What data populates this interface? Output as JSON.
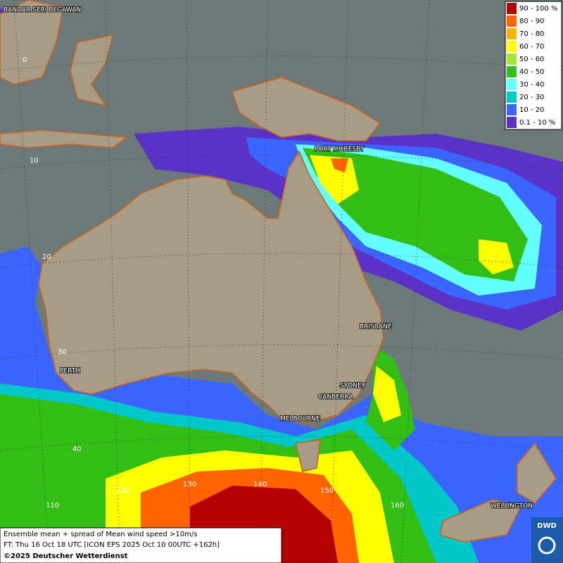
{
  "map": {
    "cities": [
      "BANDAR SERI BEGAWAN",
      "PORT MORESBY",
      "BRISBANE",
      "PERTH",
      "SYDNEY",
      "CANBERRA",
      "MELBOURNE",
      "WELLINGTON"
    ],
    "latitude_labels": [
      "0",
      "10",
      "20",
      "30",
      "40"
    ],
    "longitude_labels": [
      "110",
      "120",
      "130",
      "140",
      "150",
      "160"
    ],
    "legend": [
      {
        "label": "90 - 100 %",
        "color": "#b40000"
      },
      {
        "label": "80 - 90",
        "color": "#ff6400"
      },
      {
        "label": "70 - 80",
        "color": "#ffb400"
      },
      {
        "label": "60 - 70",
        "color": "#ffff00"
      },
      {
        "label": "50 - 60",
        "color": "#a0e632"
      },
      {
        "label": "40 - 50",
        "color": "#32be14"
      },
      {
        "label": "30 - 40",
        "color": "#64ffff"
      },
      {
        "label": "20 - 30",
        "color": "#00c8c8"
      },
      {
        "label": "10 - 20",
        "color": "#3c64ff"
      },
      {
        "label": "0.1 - 10 %",
        "color": "#5a32c8"
      }
    ],
    "footer": {
      "line1": "Ensemble mean + spread of Mean wind speed >10m/s",
      "line2": "FT: Thu 16 Oct 18 UTC [ICON EPS 2025 Oct 10 00UTC +162h]",
      "line3": "©2025 Deutscher Wetterdienst"
    },
    "logo": "DWD"
  }
}
